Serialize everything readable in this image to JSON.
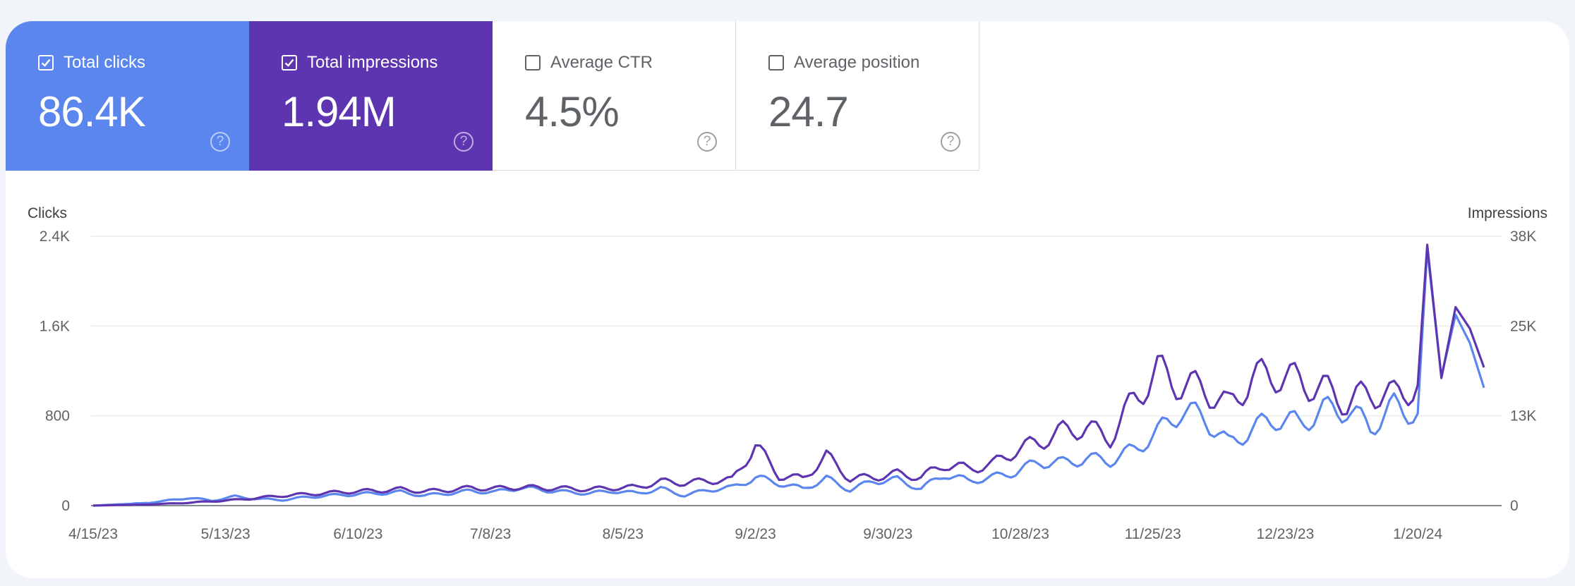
{
  "metrics": [
    {
      "label": "Total clicks",
      "value": "86.4K",
      "checked": true,
      "color": "#5b86ee"
    },
    {
      "label": "Total impressions",
      "value": "1.94M",
      "checked": true,
      "color": "#5e35b1"
    },
    {
      "label": "Average CTR",
      "value": "4.5%",
      "checked": false
    },
    {
      "label": "Average position",
      "value": "24.7",
      "checked": false
    }
  ],
  "help_symbol": "?",
  "chart_data": {
    "type": "line",
    "title": "",
    "ylabel": "Clicks",
    "y2label": "Impressions",
    "ylim": [
      0,
      2400
    ],
    "y2lim": [
      0,
      38000
    ],
    "yticks": [
      "0",
      "800",
      "1.6K",
      "2.4K"
    ],
    "y2ticks": [
      "0",
      "13K",
      "25K",
      "38K"
    ],
    "xticks": [
      "4/15/23",
      "5/13/23",
      "6/10/23",
      "7/8/23",
      "8/5/23",
      "9/2/23",
      "9/30/23",
      "10/28/23",
      "11/25/23",
      "12/23/23",
      "1/20/24"
    ],
    "x_start": "4/15/23",
    "days": 294,
    "series": [
      {
        "name": "Total clicks",
        "axis": "left",
        "color": "#5b86ee",
        "x": [
          0,
          5,
          10,
          15,
          20,
          25,
          30,
          35,
          40,
          45,
          50,
          55,
          60,
          65,
          70,
          75,
          80,
          85,
          90,
          95,
          100,
          105,
          110,
          115,
          120,
          125,
          130,
          135,
          140,
          145,
          150,
          155,
          160,
          165,
          170,
          175,
          180,
          185,
          190,
          195,
          200,
          205,
          210,
          215,
          220,
          225,
          230,
          235,
          240,
          245,
          250,
          255,
          260,
          265,
          270,
          275,
          280,
          282,
          285,
          288,
          291,
          294
        ],
        "values": [
          0,
          10,
          20,
          40,
          70,
          45,
          80,
          60,
          50,
          75,
          90,
          100,
          110,
          120,
          90,
          110,
          130,
          120,
          160,
          140,
          120,
          110,
          130,
          110,
          150,
          90,
          140,
          160,
          250,
          200,
          150,
          240,
          140,
          220,
          230,
          150,
          280,
          220,
          250,
          300,
          390,
          380,
          420,
          400,
          500,
          650,
          850,
          780,
          550,
          680,
          780,
          730,
          850,
          860,
          700,
          880,
          820,
          2280,
          1150,
          1700,
          1450,
          1050
        ]
      },
      {
        "name": "Total impressions",
        "axis": "right",
        "color": "#5e35b1",
        "x": [
          0,
          5,
          10,
          15,
          20,
          25,
          30,
          35,
          40,
          45,
          50,
          55,
          60,
          65,
          70,
          75,
          80,
          85,
          90,
          95,
          100,
          105,
          110,
          115,
          120,
          125,
          130,
          135,
          140,
          145,
          150,
          155,
          160,
          165,
          170,
          175,
          180,
          185,
          190,
          195,
          200,
          205,
          210,
          215,
          220,
          225,
          230,
          235,
          240,
          245,
          250,
          255,
          260,
          265,
          270,
          275,
          280,
          282,
          285,
          288,
          291,
          294
        ],
        "values": [
          0,
          80,
          120,
          250,
          400,
          600,
          800,
          1100,
          1400,
          1600,
          1800,
          2000,
          2100,
          2300,
          2000,
          2200,
          2500,
          2400,
          2600,
          2500,
          2400,
          2300,
          2500,
          2600,
          3400,
          3200,
          3500,
          3600,
          8500,
          4200,
          3800,
          7000,
          3800,
          4000,
          4500,
          4000,
          5800,
          5200,
          5800,
          7800,
          9000,
          10500,
          11000,
          9500,
          15000,
          19000,
          17000,
          16500,
          14000,
          18000,
          18500,
          17500,
          16500,
          14500,
          16000,
          15500,
          17000,
          36800,
          18000,
          28000,
          25000,
          19500
        ]
      }
    ]
  }
}
